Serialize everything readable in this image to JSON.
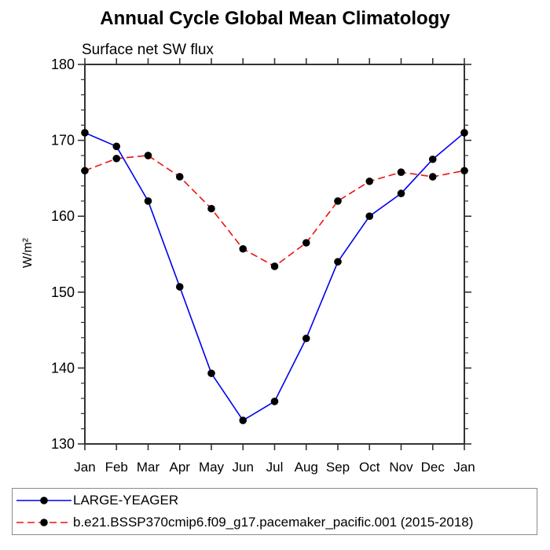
{
  "chart_data": {
    "type": "line",
    "title": "Annual Cycle Global Mean Climatology",
    "subtitle": "Surface net SW flux",
    "xlabel": "",
    "ylabel": "W/m²",
    "categories": [
      "Jan",
      "Feb",
      "Mar",
      "Apr",
      "May",
      "Jun",
      "Jul",
      "Aug",
      "Sep",
      "Oct",
      "Nov",
      "Dec",
      "Jan"
    ],
    "ylim": [
      130,
      180
    ],
    "y_major_ticks": [
      130,
      140,
      150,
      160,
      170,
      180
    ],
    "y_minor_step": 2,
    "grid": false,
    "legend_position": "bottom",
    "marker": {
      "shape": "circle",
      "color": "#000000",
      "radius": 4.8
    },
    "axis_color": "#333333",
    "series": [
      {
        "name": "LARGE-YEAGER",
        "color": "#0000ee",
        "line_style": "solid",
        "values": [
          171,
          169.2,
          162,
          150.7,
          139.3,
          133.1,
          135.6,
          143.9,
          154,
          160,
          163,
          167.5,
          171
        ]
      },
      {
        "name": "b.e21.BSSP370cmip6.f09_g17.pacemaker_pacific.001 (2015-2018)",
        "color": "#ee1111",
        "line_style": "dashed",
        "values": [
          166,
          167.6,
          168,
          165.2,
          161,
          155.7,
          153.4,
          156.5,
          162,
          164.6,
          165.8,
          165.2,
          166
        ]
      }
    ]
  }
}
